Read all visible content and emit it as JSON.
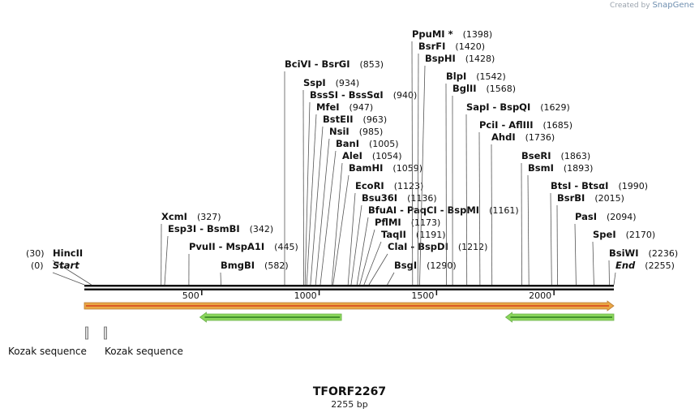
{
  "branding": {
    "prefix": "Created by",
    "name": "SnapGene"
  },
  "plasmid": {
    "name": "TFORF2267",
    "length_label": "2255 bp",
    "length": 2255
  },
  "axis": {
    "ticks": [
      500,
      1000,
      1500,
      2000
    ]
  },
  "enzymes": [
    {
      "name": "HincII",
      "pos": 30
    },
    {
      "name": "Start",
      "pos": 0,
      "italic": true
    },
    {
      "name": "BmgBI",
      "pos": 582
    },
    {
      "name": "PvuII - MspA1I",
      "pos": 445
    },
    {
      "name": "Esp3I - BsmBI",
      "pos": 342
    },
    {
      "name": "XcmI",
      "pos": 327
    },
    {
      "name": "BciVI - BsrGI",
      "pos": 853
    },
    {
      "name": "SspI",
      "pos": 934
    },
    {
      "name": "BssSI - BssSαI",
      "pos": 940
    },
    {
      "name": "MfeI",
      "pos": 947
    },
    {
      "name": "BstEII",
      "pos": 963
    },
    {
      "name": "NsiI",
      "pos": 985
    },
    {
      "name": "BanI",
      "pos": 1005
    },
    {
      "name": "AleI",
      "pos": 1054
    },
    {
      "name": "BamHI",
      "pos": 1059
    },
    {
      "name": "EcoRI",
      "pos": 1123
    },
    {
      "name": "Bsu36I",
      "pos": 1136
    },
    {
      "name": "BfuAI - PaqCI - BspMI",
      "pos": 1161
    },
    {
      "name": "PflMI",
      "pos": 1173
    },
    {
      "name": "TaqII",
      "pos": 1191
    },
    {
      "name": "ClaI - BspDI",
      "pos": 1212
    },
    {
      "name": "BsgI",
      "pos": 1290
    },
    {
      "name": "PpuMI *",
      "pos": 1398
    },
    {
      "name": "BsrFI",
      "pos": 1420
    },
    {
      "name": "BspHI",
      "pos": 1428
    },
    {
      "name": "BlpI",
      "pos": 1542
    },
    {
      "name": "BglII",
      "pos": 1568
    },
    {
      "name": "SapI - BspQI",
      "pos": 1629
    },
    {
      "name": "PciI - AflIII",
      "pos": 1685
    },
    {
      "name": "AhdI",
      "pos": 1736
    },
    {
      "name": "BseRI",
      "pos": 1863
    },
    {
      "name": "BsmI",
      "pos": 1893
    },
    {
      "name": "BtsI - BtsαI",
      "pos": 1990
    },
    {
      "name": "BsrBI",
      "pos": 2015
    },
    {
      "name": "PasI",
      "pos": 2094
    },
    {
      "name": "SpeI",
      "pos": 2170
    },
    {
      "name": "BsiWI",
      "pos": 2236
    },
    {
      "name": "End",
      "pos": 2255,
      "italic": true
    }
  ],
  "features": [
    {
      "type": "orf",
      "start": 0,
      "end": 2255,
      "direction": "forward",
      "color": "#e8a33c"
    },
    {
      "type": "orf",
      "start": 492,
      "end": 1095,
      "direction": "reverse",
      "color": "#7ed24a"
    },
    {
      "type": "orf",
      "start": 1794,
      "end": 2255,
      "direction": "reverse",
      "color": "#7ed24a"
    }
  ],
  "kozak": [
    {
      "label": "Kozak sequence",
      "pos": 8
    },
    {
      "label": "Kozak sequence",
      "pos": 92
    }
  ]
}
